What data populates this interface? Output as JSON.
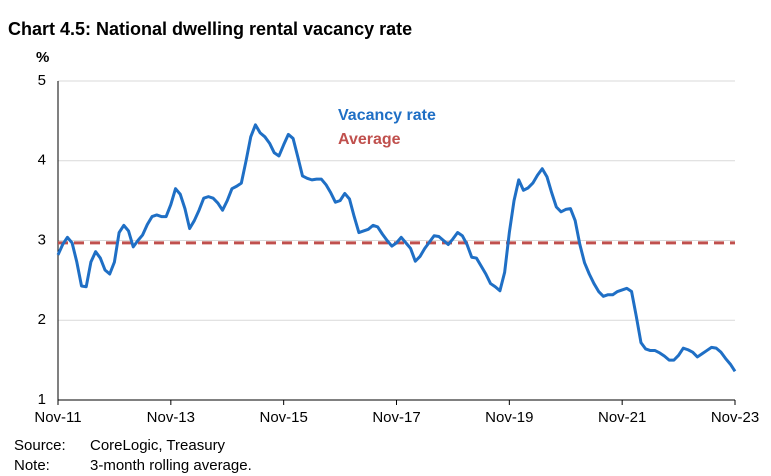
{
  "chart_data": {
    "type": "line",
    "title": "Chart 4.5: National dwelling rental vacancy rate",
    "y_label": "%",
    "categories": [
      "Nov-11",
      null,
      null,
      null,
      null,
      null,
      null,
      null,
      null,
      null,
      null,
      null,
      null,
      null,
      null,
      null,
      null,
      null,
      null,
      null,
      null,
      null,
      null,
      null,
      "Nov-13",
      null,
      null,
      null,
      null,
      null,
      null,
      null,
      null,
      null,
      null,
      null,
      null,
      null,
      null,
      null,
      null,
      null,
      null,
      null,
      null,
      null,
      null,
      null,
      "Nov-15",
      null,
      null,
      null,
      null,
      null,
      null,
      null,
      null,
      null,
      null,
      null,
      null,
      null,
      null,
      null,
      null,
      null,
      null,
      null,
      null,
      null,
      null,
      null,
      "Nov-17",
      null,
      null,
      null,
      null,
      null,
      null,
      null,
      null,
      null,
      null,
      null,
      null,
      null,
      null,
      null,
      null,
      null,
      null,
      null,
      null,
      null,
      null,
      null,
      "Nov-19",
      null,
      null,
      null,
      null,
      null,
      null,
      null,
      null,
      null,
      null,
      null,
      null,
      null,
      null,
      null,
      null,
      null,
      null,
      null,
      null,
      null,
      null,
      null,
      "Nov-21",
      null,
      null,
      null,
      null,
      null,
      null,
      null,
      null,
      null,
      null,
      null,
      null,
      null,
      null,
      null,
      null,
      null,
      null,
      null,
      null,
      null,
      null,
      null,
      "Nov-23"
    ],
    "series": [
      {
        "name": "Vacancy rate",
        "color": "#1f6fc5",
        "values": [
          2.82,
          2.95,
          3.04,
          2.97,
          2.73,
          2.43,
          2.42,
          2.73,
          2.86,
          2.78,
          2.63,
          2.58,
          2.73,
          3.1,
          3.19,
          3.12,
          2.92,
          3.0,
          3.07,
          3.2,
          3.3,
          3.32,
          3.3,
          3.3,
          3.45,
          3.65,
          3.58,
          3.4,
          3.15,
          3.25,
          3.38,
          3.53,
          3.55,
          3.53,
          3.47,
          3.38,
          3.5,
          3.65,
          3.68,
          3.72,
          4.0,
          4.3,
          4.45,
          4.35,
          4.3,
          4.22,
          4.1,
          4.06,
          4.2,
          4.33,
          4.28,
          4.05,
          3.81,
          3.78,
          3.76,
          3.77,
          3.77,
          3.7,
          3.6,
          3.48,
          3.5,
          3.59,
          3.52,
          3.3,
          3.1,
          3.12,
          3.14,
          3.19,
          3.17,
          3.08,
          3.0,
          2.93,
          2.97,
          3.04,
          2.97,
          2.9,
          2.74,
          2.8,
          2.9,
          2.98,
          3.06,
          3.05,
          3.0,
          2.95,
          3.02,
          3.1,
          3.06,
          2.95,
          2.79,
          2.78,
          2.68,
          2.58,
          2.46,
          2.42,
          2.37,
          2.6,
          3.1,
          3.5,
          3.76,
          3.63,
          3.66,
          3.72,
          3.82,
          3.9,
          3.8,
          3.6,
          3.42,
          3.36,
          3.39,
          3.4,
          3.25,
          2.95,
          2.72,
          2.58,
          2.46,
          2.36,
          2.3,
          2.32,
          2.32,
          2.36,
          2.38,
          2.4,
          2.36,
          2.05,
          1.72,
          1.64,
          1.62,
          1.62,
          1.59,
          1.55,
          1.5,
          1.5,
          1.56,
          1.65,
          1.63,
          1.6,
          1.54,
          1.58,
          1.62,
          1.66,
          1.65,
          1.6,
          1.52,
          1.45,
          1.36
        ]
      }
    ],
    "average_line": {
      "name": "Average",
      "color": "#c0504d",
      "value": 2.97,
      "dashed": true
    },
    "ylim": [
      1,
      5
    ],
    "yticks": [
      1,
      2,
      3,
      4,
      5
    ],
    "grid": true,
    "notes": [
      {
        "label": "Source:",
        "text": "CoreLogic, Treasury"
      },
      {
        "label": "Note:",
        "text": "3-month rolling average."
      }
    ]
  }
}
